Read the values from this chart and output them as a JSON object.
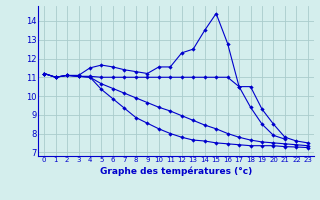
{
  "title": "Graphe des températures (°c)",
  "background_color": "#d4eeed",
  "grid_color": "#b8d8d8",
  "line_color": "#0000cc",
  "xlim": [
    -0.5,
    23.5
  ],
  "ylim": [
    6.8,
    14.8
  ],
  "xticks": [
    0,
    1,
    2,
    3,
    4,
    5,
    6,
    7,
    8,
    9,
    10,
    11,
    12,
    13,
    14,
    15,
    16,
    17,
    18,
    19,
    20,
    21,
    22,
    23
  ],
  "yticks": [
    7,
    8,
    9,
    10,
    11,
    12,
    13,
    14
  ],
  "s1_x": [
    0,
    1,
    2,
    3,
    4,
    5,
    6,
    7,
    8,
    9,
    10,
    11,
    12,
    13,
    14,
    15,
    16,
    17,
    18,
    19,
    20,
    21
  ],
  "s1_y": [
    11.2,
    11.0,
    11.1,
    11.1,
    11.5,
    11.65,
    11.55,
    11.4,
    11.3,
    11.2,
    11.55,
    11.55,
    12.3,
    12.5,
    13.5,
    14.4,
    12.8,
    10.5,
    9.4,
    8.5,
    7.9,
    7.7
  ],
  "s2_x": [
    0,
    1,
    2,
    3,
    4,
    5,
    6,
    7,
    8,
    9,
    10,
    11,
    12,
    13,
    14,
    15,
    16,
    17,
    18,
    19,
    20,
    21,
    22,
    23
  ],
  "s2_y": [
    11.2,
    11.0,
    11.1,
    11.05,
    11.05,
    11.0,
    11.0,
    11.0,
    11.0,
    11.0,
    11.0,
    11.0,
    11.0,
    11.0,
    11.0,
    11.0,
    11.0,
    10.5,
    10.5,
    9.3,
    8.5,
    7.8,
    7.6,
    7.5
  ],
  "s3_x": [
    0,
    1,
    2,
    3,
    4,
    5,
    6,
    7,
    8,
    9,
    10,
    11,
    12,
    13,
    14,
    15,
    16,
    17,
    18,
    19,
    20,
    21,
    22,
    23
  ],
  "s3_y": [
    11.2,
    11.0,
    11.1,
    11.05,
    11.0,
    10.65,
    10.4,
    10.15,
    9.9,
    9.65,
    9.4,
    9.2,
    8.95,
    8.7,
    8.45,
    8.25,
    8.0,
    7.8,
    7.65,
    7.55,
    7.5,
    7.45,
    7.4,
    7.35
  ],
  "s4_x": [
    0,
    1,
    2,
    3,
    4,
    5,
    6,
    7,
    8,
    9,
    10,
    11,
    12,
    13,
    14,
    15,
    16,
    17,
    18,
    19,
    20,
    21,
    22,
    23
  ],
  "s4_y": [
    11.2,
    11.0,
    11.1,
    11.05,
    11.0,
    10.35,
    9.85,
    9.35,
    8.85,
    8.55,
    8.25,
    8.0,
    7.8,
    7.65,
    7.6,
    7.5,
    7.45,
    7.4,
    7.35,
    7.35,
    7.35,
    7.3,
    7.28,
    7.25
  ]
}
